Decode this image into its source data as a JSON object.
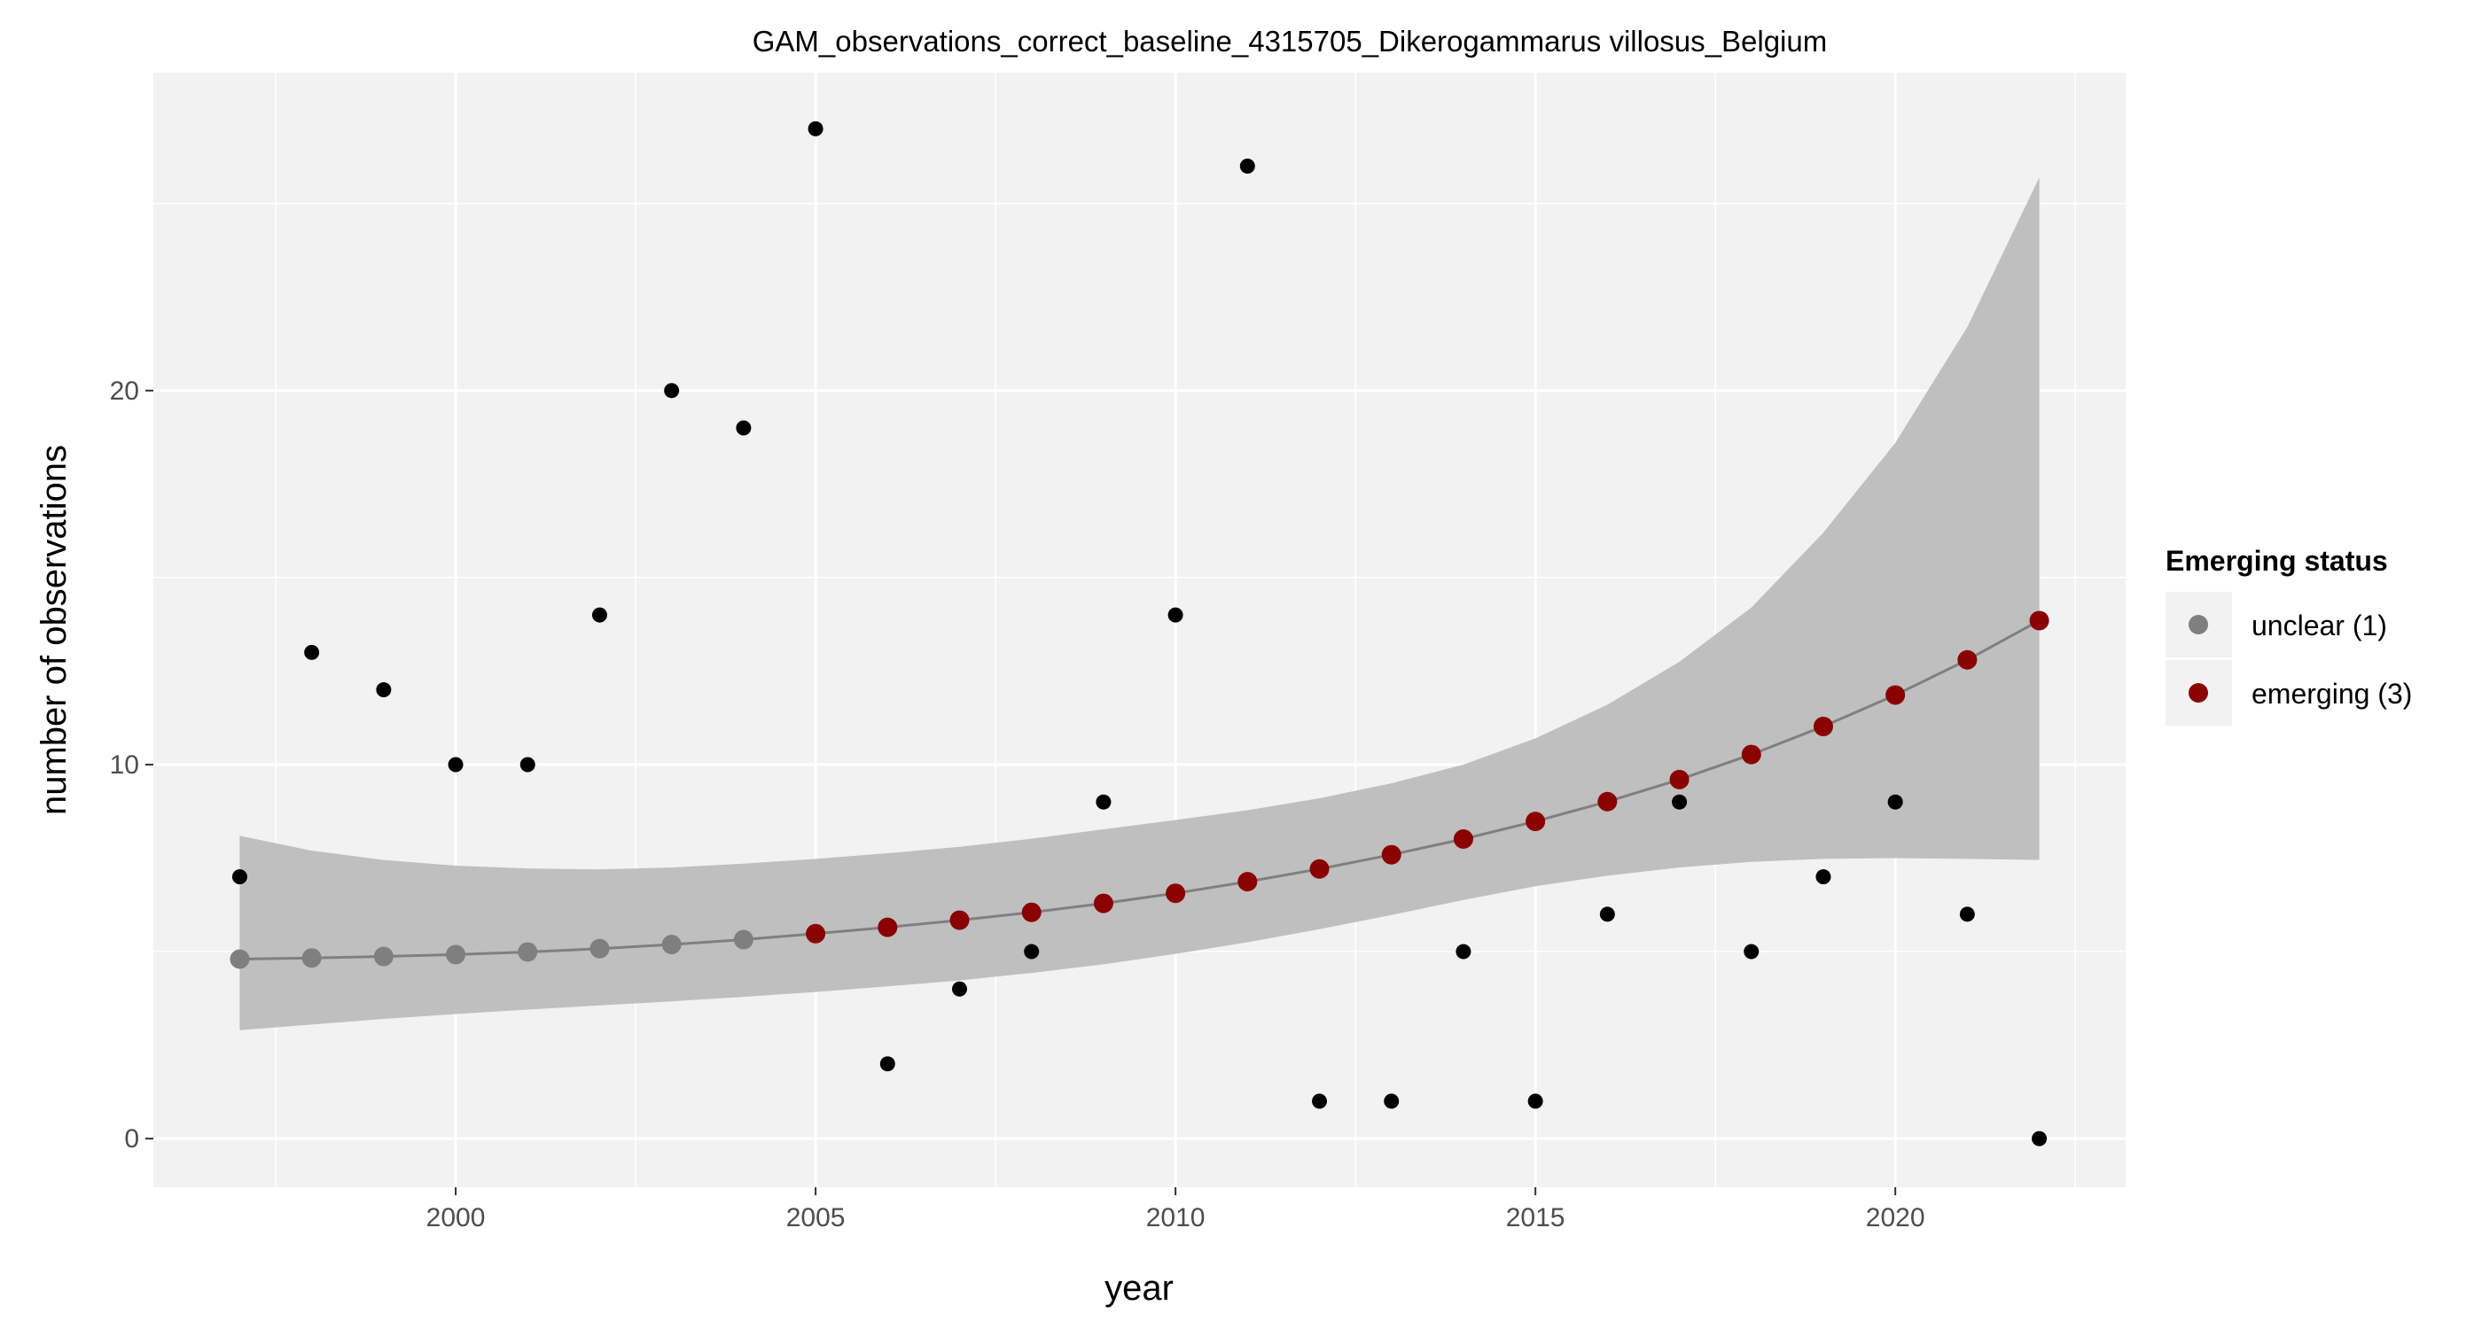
{
  "chart_data": {
    "type": "scatter",
    "title": "GAM_observations_correct_baseline_4315705_Dikerogammarus villosus_Belgium",
    "xlabel": "year",
    "ylabel": "number of observations",
    "xlim": [
      1995.8,
      2023.2
    ],
    "ylim": [
      -1.3,
      28.5
    ],
    "x_ticks": [
      2000,
      2005,
      2010,
      2015,
      2020
    ],
    "y_ticks": [
      0,
      10,
      20
    ],
    "grid": true,
    "legend": {
      "title": "Emerging status",
      "position": "right",
      "entries": [
        {
          "label": "unclear (1)",
          "color": "#7f7f7f"
        },
        {
          "label": "emerging (3)",
          "color": "#8b0000"
        }
      ]
    },
    "observed": {
      "x": [
        1997,
        1998,
        1999,
        2000,
        2001,
        2002,
        2003,
        2004,
        2005,
        2006,
        2007,
        2008,
        2009,
        2010,
        2011,
        2012,
        2013,
        2014,
        2015,
        2016,
        2017,
        2018,
        2019,
        2020,
        2021,
        2022
      ],
      "y": [
        7,
        13,
        12,
        10,
        10,
        14,
        20,
        19,
        27,
        2,
        4,
        5,
        9,
        14,
        26,
        1,
        1,
        5,
        1,
        6,
        9,
        5,
        7,
        9,
        6,
        0
      ],
      "color": "#000000"
    },
    "fit": {
      "x": [
        1997,
        1998,
        1999,
        2000,
        2001,
        2002,
        2003,
        2004,
        2005,
        2006,
        2007,
        2008,
        2009,
        2010,
        2011,
        2012,
        2013,
        2014,
        2015,
        2016,
        2017,
        2018,
        2019,
        2020,
        2021,
        2022
      ],
      "y": [
        4.8,
        4.83,
        4.87,
        4.92,
        4.99,
        5.08,
        5.19,
        5.32,
        5.48,
        5.65,
        5.84,
        6.05,
        6.29,
        6.56,
        6.87,
        7.21,
        7.59,
        8.01,
        8.48,
        9.01,
        9.6,
        10.27,
        11.02,
        11.86,
        12.8,
        13.85
      ],
      "lower": [
        2.9,
        3.05,
        3.2,
        3.33,
        3.45,
        3.56,
        3.67,
        3.79,
        3.92,
        4.07,
        4.23,
        4.43,
        4.66,
        4.94,
        5.25,
        5.6,
        5.98,
        6.38,
        6.75,
        7.03,
        7.25,
        7.4,
        7.48,
        7.5,
        7.48,
        7.45
      ],
      "upper": [
        8.1,
        7.7,
        7.45,
        7.3,
        7.22,
        7.2,
        7.25,
        7.35,
        7.48,
        7.63,
        7.8,
        8.02,
        8.27,
        8.52,
        8.78,
        9.1,
        9.5,
        10.0,
        10.7,
        11.6,
        12.75,
        14.2,
        16.2,
        18.6,
        21.7,
        25.7
      ],
      "line_color": "#7f7f7f",
      "band_color": "#bfbfbf",
      "status": [
        "unclear (1)",
        "unclear (1)",
        "unclear (1)",
        "unclear (1)",
        "unclear (1)",
        "unclear (1)",
        "unclear (1)",
        "unclear (1)",
        "emerging (3)",
        "emerging (3)",
        "emerging (3)",
        "emerging (3)",
        "emerging (3)",
        "emerging (3)",
        "emerging (3)",
        "emerging (3)",
        "emerging (3)",
        "emerging (3)",
        "emerging (3)",
        "emerging (3)",
        "emerging (3)",
        "emerging (3)",
        "emerging (3)",
        "emerging (3)",
        "emerging (3)",
        "emerging (3)"
      ]
    },
    "colors": {
      "panel": "#f2f2f2",
      "grid_major": "#ffffff",
      "unclear": "#7f7f7f",
      "emerging": "#8b0000"
    }
  }
}
